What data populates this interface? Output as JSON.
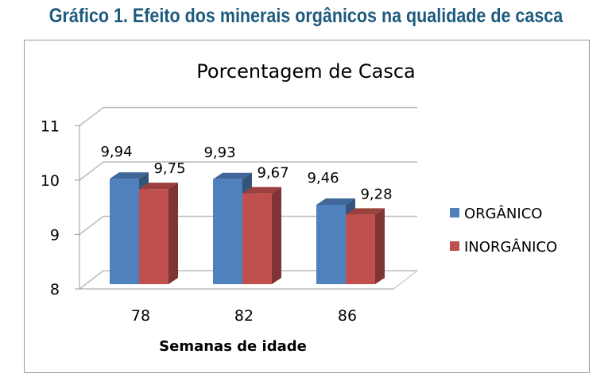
{
  "header": {
    "title": "Gráfico 1. Efeito dos minerais orgânicos na qualidade de casca"
  },
  "chart_data": {
    "type": "bar",
    "title": "Porcentagem de Casca",
    "xlabel": "Semanas de idade",
    "ylabel": "",
    "categories": [
      "78",
      "82",
      "86"
    ],
    "series": [
      {
        "name": "ORGÂNICO",
        "values": [
          9.94,
          9.93,
          9.46
        ],
        "labels": [
          "9,94",
          "9,93",
          "9,46"
        ],
        "color": "#4f81bd"
      },
      {
        "name": "INORGÂNICO",
        "values": [
          9.75,
          9.67,
          9.28
        ],
        "labels": [
          "9,75",
          "9,67",
          "9,28"
        ],
        "color": "#c0504d"
      }
    ],
    "ylim": [
      8,
      11
    ],
    "yticks": [
      "8",
      "9",
      "10",
      "11"
    ],
    "grid": true,
    "legend": "right",
    "style": "3d-clustered-column"
  }
}
